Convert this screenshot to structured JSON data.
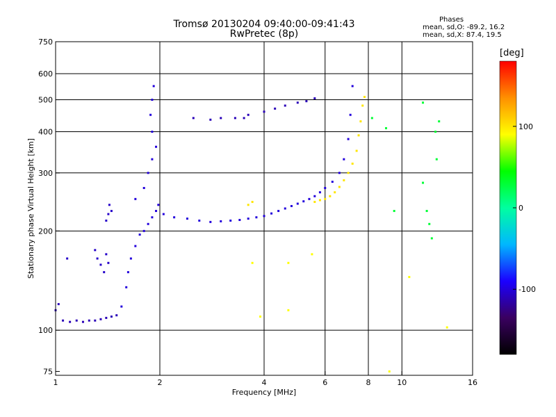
{
  "title_line1": "Tromsø 20130204 09:40:00-09:41:43",
  "title_line2": "RwPretec (8p)",
  "stats": {
    "heading": "Phases",
    "o_line": "mean, sd,O: -89.2, 16.2",
    "x_line": "mean, sd,X: 87.4, 19.5"
  },
  "colorbar": {
    "unit": "[deg]",
    "ticks": [
      {
        "value": 100,
        "label": "100"
      },
      {
        "value": 0,
        "label": "0"
      },
      {
        "value": -100,
        "label": "-100"
      }
    ],
    "range": [
      -180,
      180
    ],
    "stops": [
      "#000000",
      "#3a0060",
      "#1b00ff",
      "#00b7ff",
      "#00ffa0",
      "#00ff00",
      "#ffff00",
      "#ff9000",
      "#ff0000"
    ]
  },
  "chart_data": {
    "type": "scatter",
    "xlabel": "Frequency [MHz]",
    "ylabel": "Stationary phase Virtual Height [km]",
    "xscale": "log2",
    "yscale": "log",
    "xlim": [
      1,
      16
    ],
    "ylim": [
      73,
      750
    ],
    "xticks": [
      {
        "value": 1,
        "label": "1"
      },
      {
        "value": 2,
        "label": "2"
      },
      {
        "value": 4,
        "label": "4"
      },
      {
        "value": 6,
        "label": "6"
      },
      {
        "value": 8,
        "label": "8"
      },
      {
        "value": 10,
        "label": "10"
      },
      {
        "value": 16,
        "label": "16"
      }
    ],
    "yticks": [
      {
        "value": 75,
        "label": "75"
      },
      {
        "value": 100,
        "label": "100"
      },
      {
        "value": 200,
        "label": "200"
      },
      {
        "value": 300,
        "label": "300"
      },
      {
        "value": 400,
        "label": "400"
      },
      {
        "value": 500,
        "label": "500"
      },
      {
        "value": 600,
        "label": "600"
      },
      {
        "value": 750,
        "label": "750"
      }
    ],
    "grid_x": [
      2,
      4,
      6,
      8,
      10
    ],
    "grid_y": [
      100,
      200,
      300,
      400,
      500,
      600
    ],
    "color_encoding": "phase [deg]",
    "series": [
      {
        "points": [
          [
            1.05,
            107
          ],
          [
            1.1,
            106
          ],
          [
            1.15,
            107
          ],
          [
            1.2,
            106
          ],
          [
            1.25,
            107
          ],
          [
            1.3,
            107
          ],
          [
            1.35,
            108
          ],
          [
            1.4,
            109
          ],
          [
            1.45,
            110
          ],
          [
            1.5,
            111
          ],
          [
            1.0,
            115
          ],
          [
            1.02,
            120
          ]
        ],
        "phase": -110
      },
      {
        "points": [
          [
            1.08,
            165
          ],
          [
            1.3,
            175
          ],
          [
            1.32,
            165
          ],
          [
            1.35,
            158
          ],
          [
            1.38,
            150
          ],
          [
            1.4,
            170
          ],
          [
            1.42,
            160
          ],
          [
            1.4,
            215
          ],
          [
            1.42,
            225
          ],
          [
            1.45,
            230
          ],
          [
            1.43,
            240
          ]
        ],
        "phase": -105
      },
      {
        "points": [
          [
            1.55,
            118
          ],
          [
            1.6,
            135
          ],
          [
            1.62,
            150
          ],
          [
            1.65,
            165
          ],
          [
            1.7,
            180
          ],
          [
            1.75,
            195
          ],
          [
            1.8,
            200
          ],
          [
            1.85,
            210
          ],
          [
            1.9,
            220
          ],
          [
            1.95,
            230
          ],
          [
            1.7,
            250
          ],
          [
            1.8,
            270
          ],
          [
            1.85,
            300
          ],
          [
            1.9,
            330
          ],
          [
            1.95,
            360
          ],
          [
            1.9,
            400
          ],
          [
            1.88,
            450
          ],
          [
            1.9,
            500
          ],
          [
            1.92,
            550
          ],
          [
            1.98,
            240
          ]
        ],
        "phase": -100
      },
      {
        "points": [
          [
            2.05,
            225
          ],
          [
            2.2,
            220
          ],
          [
            2.4,
            218
          ],
          [
            2.6,
            215
          ],
          [
            2.8,
            213
          ],
          [
            3.0,
            214
          ],
          [
            3.2,
            215
          ],
          [
            3.4,
            216
          ],
          [
            3.6,
            218
          ],
          [
            3.8,
            220
          ],
          [
            4.0,
            222
          ],
          [
            4.2,
            226
          ],
          [
            4.4,
            230
          ],
          [
            4.6,
            234
          ],
          [
            4.8,
            238
          ],
          [
            5.0,
            242
          ],
          [
            5.2,
            246
          ],
          [
            5.4,
            250
          ],
          [
            5.6,
            255
          ],
          [
            5.8,
            262
          ],
          [
            6.0,
            270
          ],
          [
            6.3,
            282
          ],
          [
            6.6,
            300
          ],
          [
            6.8,
            330
          ],
          [
            7.0,
            380
          ],
          [
            7.1,
            450
          ],
          [
            7.2,
            550
          ]
        ],
        "phase": -100
      },
      {
        "points": [
          [
            3.6,
            240
          ],
          [
            3.7,
            245
          ],
          [
            5.6,
            245
          ],
          [
            5.8,
            248
          ],
          [
            6.0,
            250
          ],
          [
            6.2,
            255
          ],
          [
            6.4,
            262
          ],
          [
            6.6,
            272
          ],
          [
            6.8,
            285
          ],
          [
            7.0,
            300
          ],
          [
            7.2,
            320
          ],
          [
            7.4,
            350
          ],
          [
            7.5,
            390
          ],
          [
            7.6,
            430
          ],
          [
            7.7,
            480
          ],
          [
            7.8,
            510
          ]
        ],
        "phase": 100
      },
      {
        "points": [
          [
            2.5,
            440
          ],
          [
            2.8,
            435
          ],
          [
            3.0,
            440
          ],
          [
            3.3,
            440
          ],
          [
            3.5,
            440
          ],
          [
            3.6,
            450
          ],
          [
            4.0,
            460
          ],
          [
            4.3,
            470
          ],
          [
            4.6,
            480
          ],
          [
            5.0,
            490
          ],
          [
            5.3,
            495
          ],
          [
            5.6,
            505
          ]
        ],
        "phase": -110
      },
      {
        "points": [
          [
            11.5,
            280
          ],
          [
            11.8,
            230
          ],
          [
            12.0,
            210
          ],
          [
            12.2,
            190
          ],
          [
            12.5,
            400
          ],
          [
            12.6,
            330
          ],
          [
            12.8,
            430
          ],
          [
            11.5,
            490
          ],
          [
            8.2,
            440
          ],
          [
            9.0,
            410
          ],
          [
            9.5,
            230
          ]
        ],
        "phase": 30
      },
      {
        "points": [
          [
            3.7,
            160
          ],
          [
            4.7,
            115
          ],
          [
            4.7,
            160
          ],
          [
            5.5,
            170
          ],
          [
            9.2,
            75
          ],
          [
            10.5,
            145
          ],
          [
            13.5,
            102
          ],
          [
            3.9,
            110
          ]
        ],
        "phase": 90
      }
    ]
  }
}
